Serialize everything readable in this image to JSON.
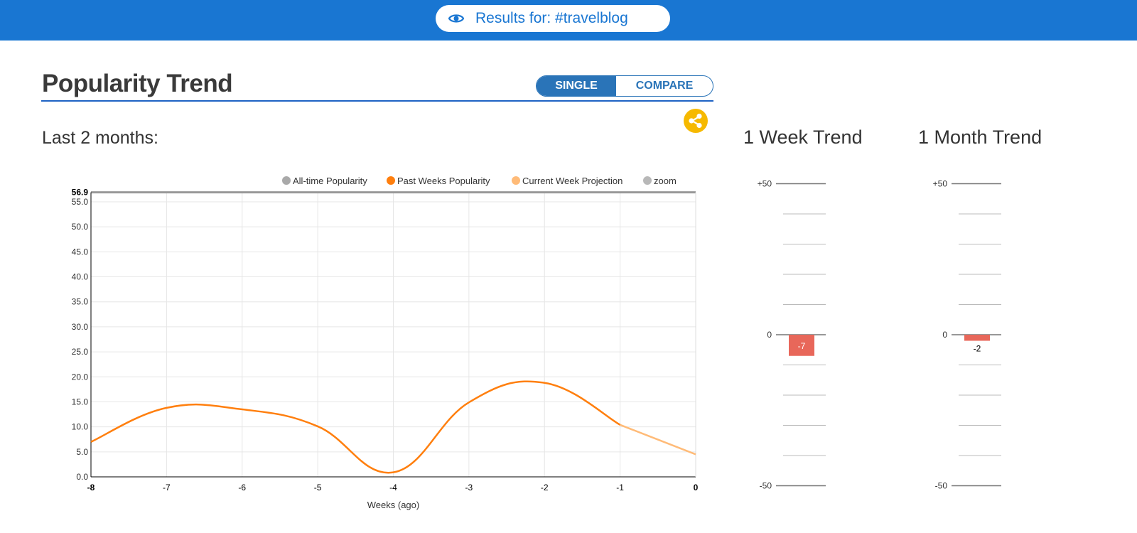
{
  "header": {
    "search_label": "Results for: #travelblog",
    "icon": "eye-icon"
  },
  "section": {
    "title": "Popularity Trend",
    "toggle": {
      "single": "SINGLE",
      "compare": "COMPARE",
      "active": "single"
    },
    "subtitle": "Last 2 months:",
    "share_icon": "share-icon"
  },
  "chart_data": [
    {
      "type": "line",
      "legend": [
        "All-time Popularity",
        "Past Weeks Popularity",
        "Current Week Projection",
        "zoom"
      ],
      "legend_colors": [
        "#a9a9a9",
        "#ff7f0e",
        "#ffbb78",
        "#b8b8b8"
      ],
      "legend_position": "top-right",
      "xlabel": "Weeks (ago)",
      "x": [
        -8,
        -7,
        -6,
        -5,
        -4,
        -3,
        -2,
        -1,
        0
      ],
      "x_ticks": [
        "-8",
        "-7",
        "-6",
        "-5",
        "-4",
        "-3",
        "-2",
        "-1",
        "0"
      ],
      "y_ticks": [
        "0.0",
        "5.0",
        "10.0",
        "15.0",
        "20.0",
        "25.0",
        "30.0",
        "35.0",
        "40.0",
        "45.0",
        "50.0",
        "55.0"
      ],
      "y_max_label": "56.9",
      "ylim": [
        0,
        56.9
      ],
      "grid": true,
      "series": [
        {
          "name": "Past Weeks Popularity",
          "x": [
            -8,
            -7,
            -6,
            -5,
            -4,
            -3,
            -2,
            -1
          ],
          "values": [
            7.0,
            13.8,
            13.5,
            10.1,
            0.9,
            14.9,
            18.8,
            10.4
          ],
          "color": "#ff7f0e"
        },
        {
          "name": "Current Week Projection",
          "x": [
            -1,
            0
          ],
          "values": [
            10.4,
            4.5
          ],
          "color": "#ffbb78"
        }
      ]
    },
    {
      "type": "bar",
      "title": "1 Week Trend",
      "values": [
        -7
      ],
      "labels": [
        "-7"
      ],
      "ylim": [
        -50,
        50
      ],
      "y_ticks": [
        "+50",
        "0",
        "-50"
      ],
      "color": "#e8675a"
    },
    {
      "type": "bar",
      "title": "1 Month Trend",
      "values": [
        -2
      ],
      "labels": [
        "-2"
      ],
      "ylim": [
        -50,
        50
      ],
      "y_ticks": [
        "+50",
        "0",
        "-50"
      ],
      "color": "#e8675a"
    }
  ]
}
